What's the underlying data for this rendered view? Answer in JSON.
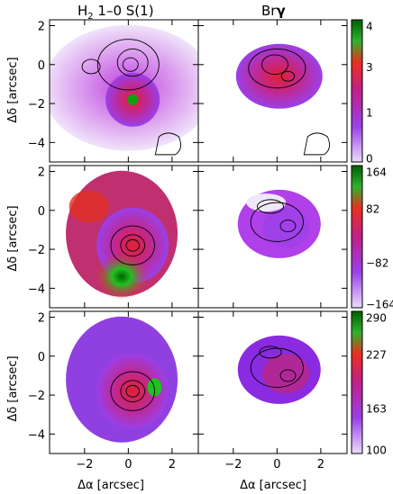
{
  "column_titles": [
    "H",
    "2",
    " 1–0 S(1)",
    "Br",
    "γ"
  ],
  "y_axis_label": "Δδ [arcsec]",
  "x_axis_label": "Δα [arcsec]",
  "y_ticks": [
    "2",
    "0",
    "−2",
    "−4"
  ],
  "x_ticks": [
    "−2",
    "0",
    "2"
  ],
  "chart_data": [
    {
      "type": "heatmap",
      "panel": "row1-left",
      "colorbar_ticks": []
    },
    {
      "type": "heatmap",
      "panel": "row1-right",
      "colorbar_ticks": [
        "4",
        "3",
        "1",
        "0"
      ]
    },
    {
      "type": "heatmap",
      "panel": "row2-left",
      "colorbar_ticks": []
    },
    {
      "type": "heatmap",
      "panel": "row2-right",
      "colorbar_ticks": [
        "164",
        "82",
        "−82",
        "−164"
      ]
    },
    {
      "type": "heatmap",
      "panel": "row3-left",
      "colorbar_ticks": []
    },
    {
      "type": "heatmap",
      "panel": "row3-right",
      "colorbar_ticks": [
        "290",
        "227",
        "163",
        "100"
      ]
    }
  ],
  "colorbar_gradient": [
    "#e8d8f8",
    "#8a2be2",
    "#d0206a",
    "#e83020",
    "#20c020",
    "#006400"
  ]
}
